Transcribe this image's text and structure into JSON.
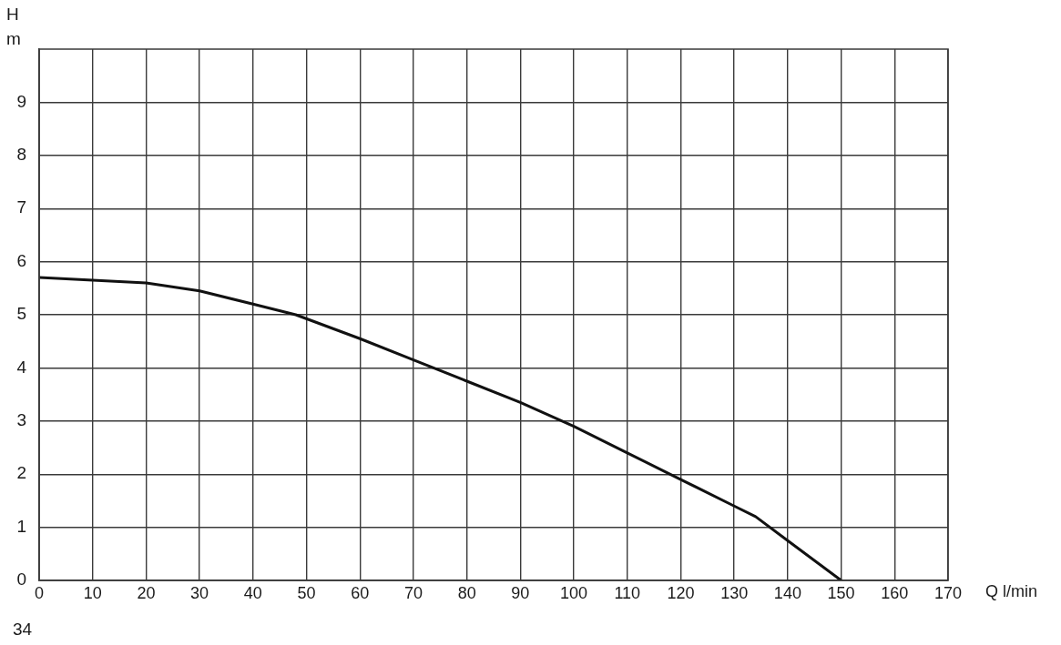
{
  "chart_data": {
    "type": "line",
    "xlabel": "Q l/min",
    "ylabel": "H m",
    "annotations": [
      "34"
    ],
    "x": [
      0,
      10,
      20,
      30,
      40,
      48,
      60,
      70,
      80,
      90,
      100,
      110,
      120,
      130,
      134,
      140,
      150
    ],
    "values": [
      5.7,
      5.65,
      5.6,
      5.45,
      5.2,
      5.0,
      4.55,
      4.15,
      3.75,
      3.35,
      2.9,
      2.4,
      1.9,
      1.4,
      1.2,
      0.75,
      0
    ],
    "color": "#111111",
    "xlim": [
      0,
      170
    ],
    "xticks": [
      0,
      10,
      20,
      30,
      40,
      50,
      60,
      70,
      80,
      90,
      100,
      110,
      120,
      130,
      140,
      150,
      160,
      170
    ],
    "ylim": [
      0,
      10
    ],
    "yticks": [
      0,
      1,
      2,
      3,
      4,
      5,
      6,
      7,
      8,
      9
    ],
    "grid": true,
    "marker": "none",
    "line_style": "solid"
  }
}
